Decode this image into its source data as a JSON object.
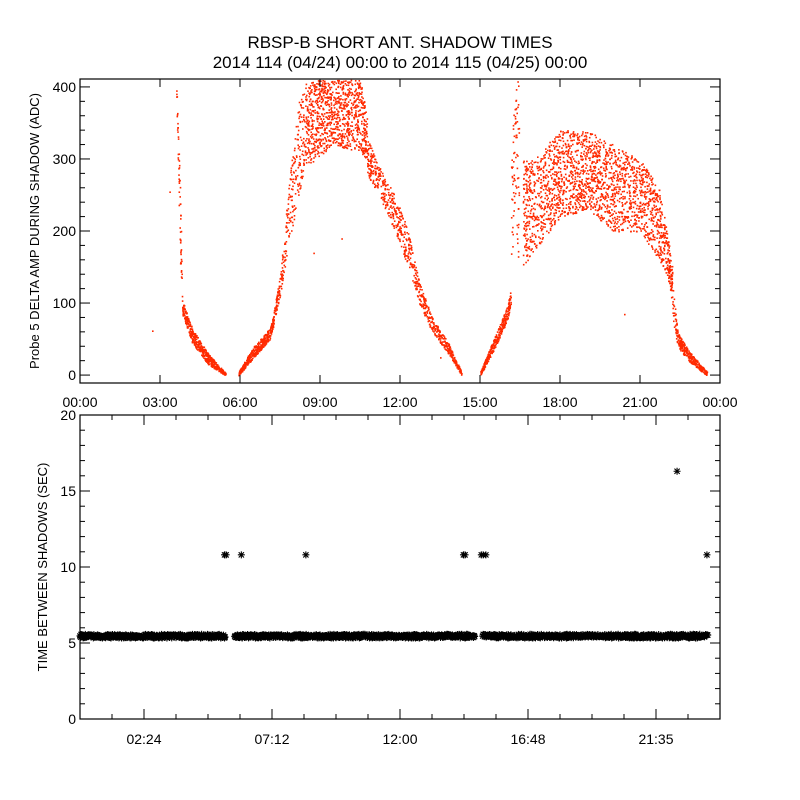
{
  "title": {
    "line1": "RBSP-B SHORT ANT. SHADOW TIMES",
    "line2": "2014 114 (04/24) 00:00 to 2014 115 (04/25) 00:00"
  },
  "colors": {
    "points_top": "#ff2a00",
    "points_bottom": "#000000",
    "axes": "#000000",
    "background": "#ffffff"
  },
  "chart_data": [
    {
      "type": "scatter",
      "title": "RBSP-B SHORT ANT. SHADOW TIMES",
      "xlabel": "",
      "ylabel": "Probe 5 DELTA AMP DURING SHADOW (ADC)",
      "x_units": "hours since 2014-04-24 00:00",
      "xlim": [
        0,
        24
      ],
      "ylim": [
        -11,
        411
      ],
      "xticks": [
        0,
        3,
        6,
        9,
        12,
        15,
        18,
        21,
        24
      ],
      "xtick_labels": [
        "00:00",
        "03:00",
        "06:00",
        "09:00",
        "12:00",
        "15:00",
        "18:00",
        "21:00",
        "00:00"
      ],
      "yticks": [
        0,
        100,
        200,
        300,
        400
      ],
      "ytick_labels": [
        "0",
        "100",
        "200",
        "300",
        "400"
      ],
      "grid": false,
      "point_clouds": [
        {
          "count": 60,
          "envelope": [
            [
              3.6,
              380,
              410
            ],
            [
              3.75,
              150,
              250
            ],
            [
              3.82,
              95,
              110
            ]
          ]
        },
        {
          "count": 500,
          "envelope": [
            [
              3.82,
              85,
              105
            ],
            [
              4.2,
              45,
              65
            ],
            [
              4.8,
              15,
              30
            ],
            [
              5.45,
              0,
              3
            ]
          ]
        },
        {
          "count": 400,
          "envelope": [
            [
              5.93,
              0,
              5
            ],
            [
              6.5,
              25,
              40
            ],
            [
              7.1,
              50,
              65
            ],
            [
              7.25,
              70,
              85
            ]
          ]
        },
        {
          "count": 300,
          "envelope": [
            [
              7.25,
              75,
              90
            ],
            [
              7.5,
              110,
              140
            ],
            [
              7.8,
              180,
              260
            ],
            [
              8.2,
              250,
              380
            ],
            [
              8.5,
              300,
              410
            ]
          ]
        },
        {
          "count": 900,
          "envelope": [
            [
              8.5,
              290,
              410
            ],
            [
              9.5,
              320,
              410
            ],
            [
              10.5,
              310,
              410
            ],
            [
              10.75,
              300,
              360
            ]
          ]
        },
        {
          "count": 700,
          "envelope": [
            [
              10.75,
              280,
              330
            ],
            [
              11.2,
              250,
              290
            ],
            [
              11.8,
              200,
              250
            ],
            [
              12.3,
              150,
              200
            ],
            [
              12.7,
              100,
              130
            ],
            [
              13.2,
              60,
              80
            ],
            [
              13.8,
              30,
              45
            ],
            [
              14.3,
              0,
              5
            ]
          ]
        },
        {
          "count": 300,
          "envelope": [
            [
              15.0,
              0,
              5
            ],
            [
              15.5,
              35,
              50
            ],
            [
              16.0,
              75,
              95
            ],
            [
              16.15,
              100,
              120
            ]
          ]
        },
        {
          "count": 80,
          "envelope": [
            [
              16.15,
              150,
              300
            ],
            [
              16.3,
              200,
              410
            ],
            [
              16.45,
              150,
              410
            ]
          ]
        },
        {
          "count": 2000,
          "envelope": [
            [
              16.6,
              150,
              300
            ],
            [
              17,
              170,
              300
            ],
            [
              18,
              220,
              340
            ],
            [
              19,
              230,
              340
            ],
            [
              20,
              200,
              320
            ],
            [
              21,
              200,
              300
            ],
            [
              21.7,
              160,
              260
            ],
            [
              22.0,
              140,
              200
            ],
            [
              22.2,
              100,
              150
            ]
          ]
        },
        {
          "count": 300,
          "envelope": [
            [
              22.2,
              80,
              130
            ],
            [
              22.4,
              40,
              60
            ],
            [
              22.8,
              20,
              35
            ],
            [
              23.5,
              0,
              5
            ]
          ]
        }
      ],
      "stray_points": [
        [
          2.7,
          62
        ],
        [
          3.35,
          255
        ],
        [
          8.75,
          170
        ],
        [
          9.8,
          190
        ],
        [
          13.5,
          25
        ],
        [
          20.4,
          85
        ]
      ]
    },
    {
      "type": "scatter",
      "xlabel": "",
      "ylabel": "TIME BETWEEN SHADOWS (SEC)",
      "x_units": "hours since 2014-04-24 00:00",
      "xlim": [
        0,
        24
      ],
      "ylim": [
        0,
        20
      ],
      "xticks": [
        2.4,
        7.2,
        12.0,
        16.8,
        21.6
      ],
      "xtick_labels": [
        "02:24",
        "07:12",
        "12:00",
        "16:48",
        "21:35"
      ],
      "yticks": [
        0,
        5,
        10,
        15,
        20
      ],
      "ytick_labels": [
        "0",
        "5",
        "10",
        "15",
        "20"
      ],
      "grid": false,
      "marker": "asterisk",
      "band_value": 5.45,
      "band_segments": [
        [
          0.0,
          5.45
        ],
        [
          5.8,
          14.8
        ],
        [
          15.1,
          23.55
        ]
      ],
      "outliers": [
        [
          5.42,
          10.8
        ],
        [
          5.48,
          10.8
        ],
        [
          6.05,
          10.8
        ],
        [
          8.47,
          10.8
        ],
        [
          14.38,
          10.8
        ],
        [
          14.44,
          10.8
        ],
        [
          15.05,
          10.8
        ],
        [
          15.12,
          10.8
        ],
        [
          15.22,
          10.8
        ],
        [
          22.39,
          16.3
        ],
        [
          23.51,
          10.8
        ]
      ]
    }
  ]
}
